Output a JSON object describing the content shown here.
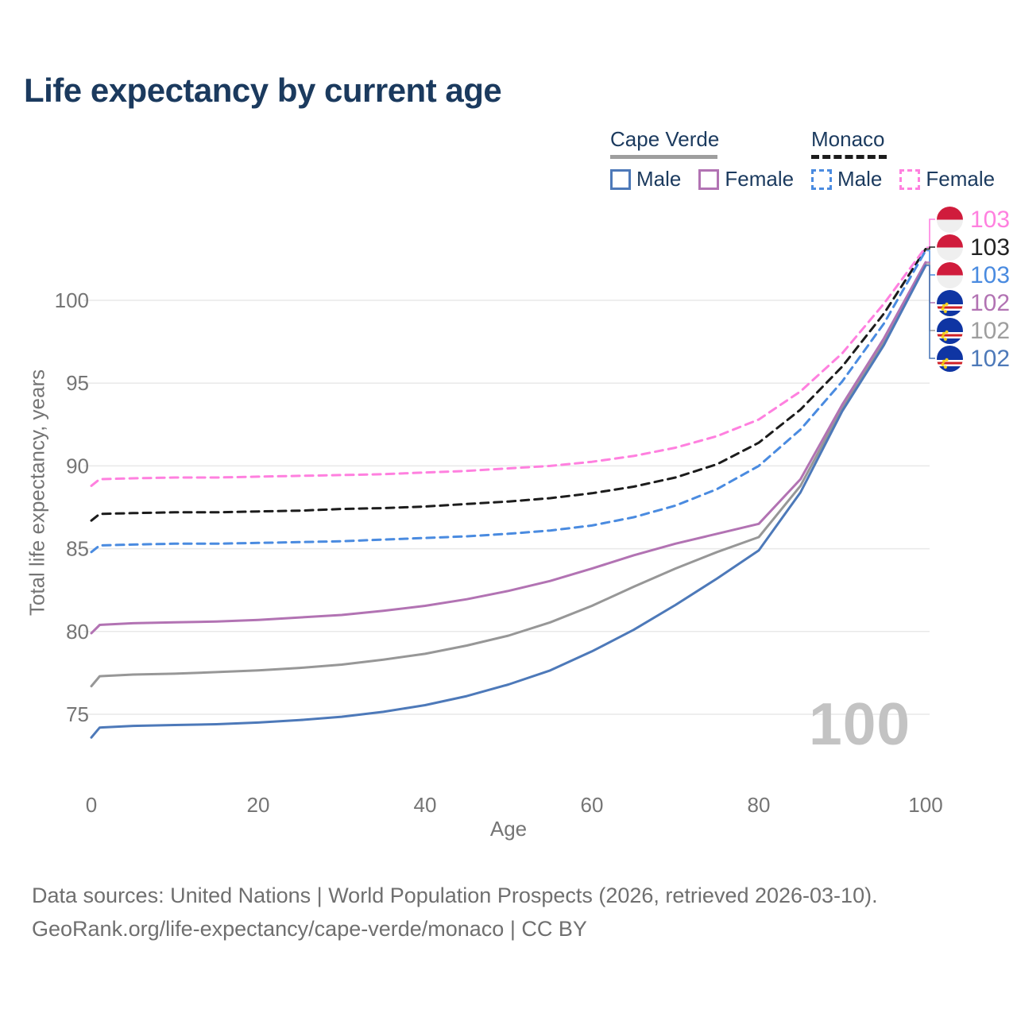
{
  "title": "Life expectancy by current age",
  "colors": {
    "title_navy": "#1b3a5e",
    "axis_text": "#757575",
    "grid": "#e9e9e9",
    "watermark": "#c3c3c3",
    "footer_text": "#6f6f6f",
    "monaco_red": "#d01c3c",
    "monaco_white": "#efefef",
    "cv_blue": "#0f35a3",
    "cv_red": "#cf2027",
    "cv_white": "#ffffff",
    "cv_yellow": "#f7d116"
  },
  "legend": {
    "groups": [
      {
        "country": "Cape Verde",
        "line_style": "solid",
        "line_color": "#9e9e9e",
        "items": [
          {
            "label": "Male",
            "color": "#4d79b9",
            "style": "solid"
          },
          {
            "label": "Female",
            "color": "#b273b3",
            "style": "solid"
          }
        ]
      },
      {
        "country": "Monaco",
        "line_style": "dashed",
        "line_color": "#1c1c1c",
        "items": [
          {
            "label": "Male",
            "color": "#4a8be0",
            "style": "dashed"
          },
          {
            "label": "Female",
            "color": "#ff80df",
            "style": "dashed"
          }
        ]
      }
    ]
  },
  "chart_data": {
    "type": "line",
    "title": "Life expectancy by current age",
    "xlabel": "Age",
    "ylabel": "Total life expectancy, years",
    "xlim": [
      0,
      100
    ],
    "ylim": [
      72.5,
      104.5
    ],
    "xticks": [
      0,
      20,
      40,
      60,
      80,
      100
    ],
    "yticks": [
      75,
      80,
      85,
      90,
      95,
      100
    ],
    "grid": "horizontal",
    "legend_position": "top-right",
    "age_watermark": "100",
    "ages": [
      0,
      1,
      5,
      10,
      15,
      20,
      25,
      30,
      35,
      40,
      45,
      50,
      55,
      60,
      65,
      70,
      75,
      80,
      85,
      90,
      95,
      100
    ],
    "series": [
      {
        "key": "cape_verde_total",
        "name": "Cape Verde",
        "country": "Cape Verde",
        "sex": "Both",
        "color": "#979797",
        "line_style": "solid",
        "values": [
          76.7,
          77.3,
          77.4,
          77.45,
          77.55,
          77.65,
          77.8,
          78.0,
          78.3,
          78.65,
          79.15,
          79.75,
          80.55,
          81.55,
          82.7,
          83.8,
          84.8,
          85.7,
          88.8,
          93.5,
          97.5,
          102.2
        ]
      },
      {
        "key": "cape_verde_female",
        "name": "Cape Verde Female",
        "country": "Cape Verde",
        "sex": "Female",
        "color": "#b273b3",
        "line_style": "solid",
        "values": [
          79.9,
          80.4,
          80.5,
          80.55,
          80.6,
          80.7,
          80.85,
          81.0,
          81.25,
          81.55,
          81.95,
          82.45,
          83.05,
          83.8,
          84.6,
          85.3,
          85.9,
          86.5,
          89.2,
          93.7,
          97.7,
          102.3
        ]
      },
      {
        "key": "cape_verde_male",
        "name": "Cape Verde Male",
        "country": "Cape Verde",
        "sex": "Male",
        "color": "#4d79b9",
        "line_style": "solid",
        "values": [
          73.6,
          74.2,
          74.3,
          74.35,
          74.4,
          74.5,
          74.65,
          74.85,
          75.15,
          75.55,
          76.1,
          76.8,
          77.65,
          78.8,
          80.1,
          81.6,
          83.2,
          84.9,
          88.4,
          93.3,
          97.3,
          102.1
        ]
      },
      {
        "key": "monaco_total",
        "name": "Monaco",
        "country": "Monaco",
        "sex": "Both",
        "color": "#1c1c1c",
        "line_style": "dashed",
        "values": [
          86.7,
          87.1,
          87.15,
          87.2,
          87.2,
          87.25,
          87.3,
          87.4,
          87.45,
          87.55,
          87.7,
          87.85,
          88.05,
          88.35,
          88.75,
          89.3,
          90.1,
          91.4,
          93.4,
          96.0,
          99.2,
          103.1
        ]
      },
      {
        "key": "monaco_male",
        "name": "Monaco Male",
        "country": "Monaco",
        "sex": "Male",
        "color": "#4a8be0",
        "line_style": "dashed",
        "values": [
          84.8,
          85.2,
          85.25,
          85.3,
          85.3,
          85.35,
          85.4,
          85.45,
          85.55,
          85.65,
          85.75,
          85.9,
          86.1,
          86.4,
          86.9,
          87.6,
          88.6,
          90.0,
          92.2,
          95.1,
          98.6,
          103.0
        ]
      },
      {
        "key": "monaco_female",
        "name": "Monaco Female",
        "country": "Monaco",
        "sex": "Female",
        "color": "#ff80df",
        "line_style": "dashed",
        "values": [
          88.8,
          89.2,
          89.25,
          89.3,
          89.3,
          89.35,
          89.4,
          89.45,
          89.5,
          89.6,
          89.7,
          89.85,
          90.0,
          90.25,
          90.6,
          91.1,
          91.8,
          92.8,
          94.5,
          96.8,
          99.8,
          103.2
        ]
      }
    ],
    "end_labels": [
      {
        "label": "103",
        "color": "#ff80df",
        "flag": "monaco",
        "series": "monaco_female"
      },
      {
        "label": "103",
        "color": "#222222",
        "flag": "monaco",
        "series": "monaco_total"
      },
      {
        "label": "103",
        "color": "#4a8be0",
        "flag": "monaco",
        "series": "monaco_male"
      },
      {
        "label": "102",
        "color": "#b273b3",
        "flag": "cape-verde",
        "series": "cape_verde_female"
      },
      {
        "label": "102",
        "color": "#9e9e9e",
        "flag": "cape-verde",
        "series": "cape_verde_total"
      },
      {
        "label": "102",
        "color": "#4d79b9",
        "flag": "cape-verde",
        "series": "cape_verde_male"
      }
    ]
  },
  "footer": {
    "line1": "Data sources: United Nations | World Population Prospects (2026, retrieved 2026-03-10).",
    "line2": "GeoRank.org/life-expectancy/cape-verde/monaco | CC BY"
  }
}
